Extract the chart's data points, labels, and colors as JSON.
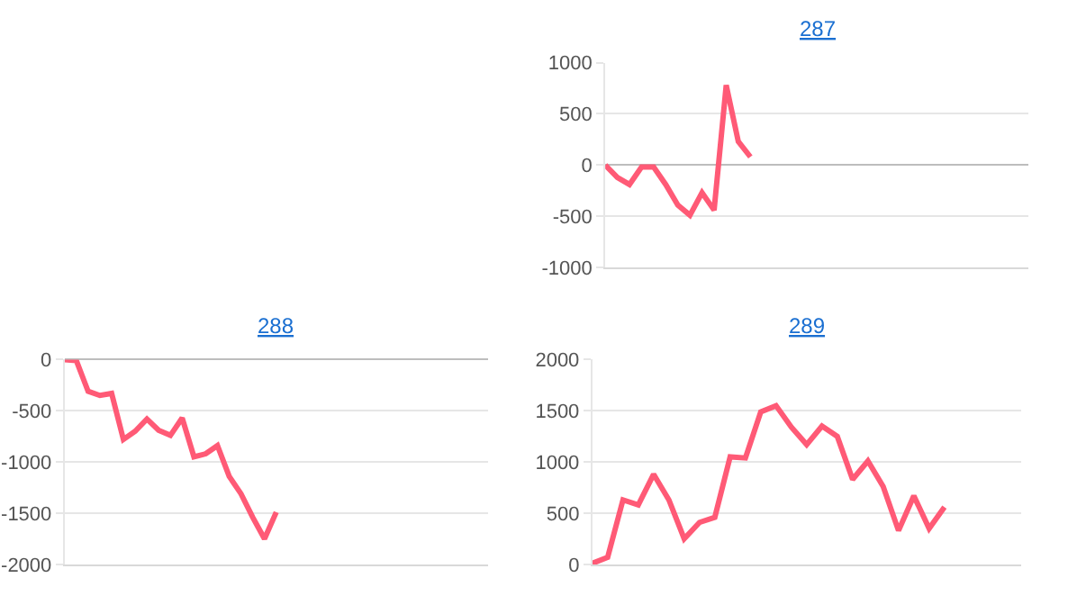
{
  "chart_data": [
    {
      "type": "line",
      "title": "287",
      "categories": [
        null,
        null,
        null,
        null,
        null,
        null,
        null,
        null,
        null,
        null,
        null,
        null,
        null,
        null,
        null,
        null,
        null,
        null,
        null,
        null,
        null,
        null,
        null,
        null,
        null,
        null,
        null,
        null,
        null,
        null,
        null,
        null,
        null,
        null,
        null,
        null
      ],
      "values": [
        0,
        -120,
        -190,
        -20,
        -20,
        -190,
        -390,
        -490,
        -270,
        -440,
        780,
        230,
        80,
        null,
        null,
        null,
        null,
        null,
        null,
        null,
        null,
        null,
        null,
        null,
        null,
        null,
        null,
        null,
        null,
        null,
        null,
        null,
        null,
        null,
        null,
        null
      ],
      "color": "#ff5a76",
      "ylim": [
        -1000,
        1000
      ],
      "yticks": [
        -1000,
        -500,
        0,
        500,
        1000
      ],
      "grid": "y",
      "tick_labels": "y"
    },
    {
      "type": "line",
      "title": "288",
      "categories": [
        null,
        null,
        null,
        null,
        null,
        null,
        null,
        null,
        null,
        null,
        null,
        null,
        null,
        null,
        null,
        null,
        null,
        null,
        null,
        null,
        null,
        null,
        null,
        null,
        null,
        null,
        null,
        null,
        null,
        null,
        null,
        null,
        null,
        null,
        null,
        null,
        null
      ],
      "values": [
        0,
        -10,
        -310,
        -350,
        -330,
        -780,
        -700,
        -580,
        -690,
        -740,
        -570,
        -950,
        -920,
        -840,
        -1140,
        -1310,
        -1540,
        -1750,
        -1490,
        null,
        null,
        null,
        null,
        null,
        null,
        null,
        null,
        null,
        null,
        null,
        null,
        null,
        null,
        null,
        null,
        null,
        null
      ],
      "color": "#ff5a76",
      "ylim": [
        -2000,
        0
      ],
      "yticks": [
        -2000,
        -1500,
        -1000,
        -500,
        0
      ],
      "grid": "y",
      "tick_labels": "y"
    },
    {
      "type": "line",
      "title": "289",
      "categories": [
        null,
        null,
        null,
        null,
        null,
        null,
        null,
        null,
        null,
        null,
        null,
        null,
        null,
        null,
        null,
        null,
        null,
        null,
        null,
        null,
        null,
        null,
        null,
        null,
        null,
        null,
        null,
        null,
        null
      ],
      "values": [
        10,
        70,
        630,
        580,
        880,
        630,
        250,
        410,
        460,
        1050,
        1040,
        1490,
        1550,
        1340,
        1170,
        1350,
        1250,
        830,
        1010,
        760,
        330,
        670,
        350,
        560,
        null,
        null,
        null,
        null,
        null
      ],
      "color": "#ff5a76",
      "ylim": [
        0,
        2000
      ],
      "yticks": [
        0,
        500,
        1000,
        1500,
        2000
      ],
      "grid": "y",
      "tick_labels": "y"
    }
  ]
}
